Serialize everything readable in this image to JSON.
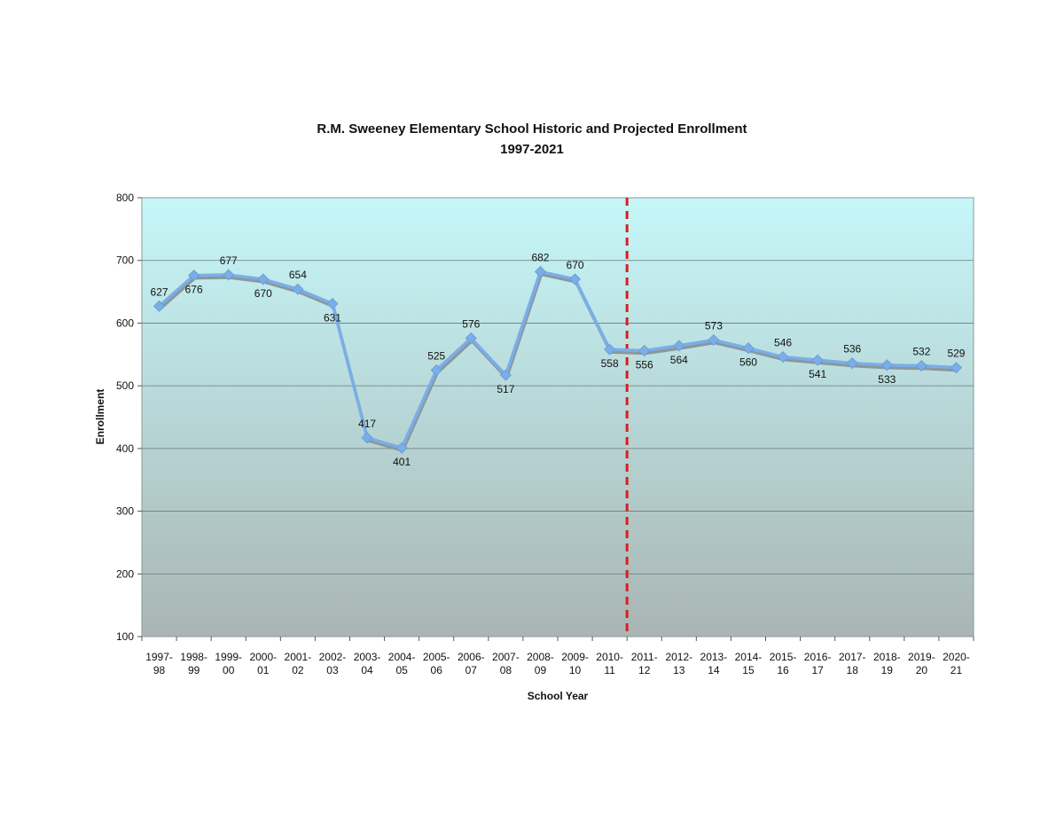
{
  "chart_data": {
    "type": "line",
    "title": "R.M. Sweeney Elementary School Historic and Projected Enrollment",
    "subtitle": "1997-2021",
    "xlabel": "School Year",
    "ylabel": "Enrollment",
    "ylim": [
      100,
      800
    ],
    "yticks": [
      "100",
      "200",
      "300",
      "400",
      "500",
      "600",
      "700",
      "800"
    ],
    "grid": true,
    "categories": [
      [
        "1997-",
        "98"
      ],
      [
        "1998-",
        "99"
      ],
      [
        "1999-",
        "00"
      ],
      [
        "2000-",
        "01"
      ],
      [
        "2001-",
        "02"
      ],
      [
        "2002-",
        "03"
      ],
      [
        "2003-",
        "04"
      ],
      [
        "2004-",
        "05"
      ],
      [
        "2005-",
        "06"
      ],
      [
        "2006-",
        "07"
      ],
      [
        "2007-",
        "08"
      ],
      [
        "2008-",
        "09"
      ],
      [
        "2009-",
        "10"
      ],
      [
        "2010-",
        "11"
      ],
      [
        "2011-",
        "12"
      ],
      [
        "2012-",
        "13"
      ],
      [
        "2013-",
        "14"
      ],
      [
        "2014-",
        "15"
      ],
      [
        "2015-",
        "16"
      ],
      [
        "2016-",
        "17"
      ],
      [
        "2017-",
        "18"
      ],
      [
        "2018-",
        "19"
      ],
      [
        "2019-",
        "20"
      ],
      [
        "2020-",
        "21"
      ]
    ],
    "series": [
      {
        "values": [
          627,
          676,
          677,
          670,
          654,
          631,
          417,
          401,
          525,
          576,
          517,
          682,
          670,
          558,
          556,
          564,
          573,
          560,
          546,
          541,
          536,
          533,
          532,
          529
        ],
        "data_labels": [
          "627",
          "676",
          "677",
          "670",
          "654",
          "631",
          "417",
          "401",
          "525",
          "576",
          "517",
          "682",
          "670",
          "558",
          "556",
          "564",
          "573",
          "560",
          "546",
          "541",
          "536",
          "533",
          "532",
          "529"
        ],
        "color": "#7aaee8"
      }
    ],
    "divider_after_category": "2010-11",
    "colors": {
      "plot_top": "#c6f7f9",
      "plot_bottom": "#a9b5b4",
      "line": "#7aaee8",
      "divider": "#d42020",
      "grid": "#6a7a7a"
    }
  }
}
